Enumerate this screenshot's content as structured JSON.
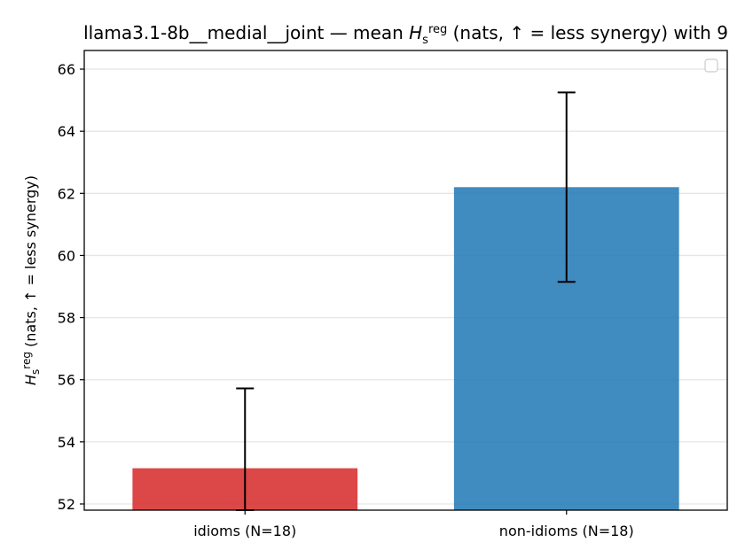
{
  "chart_data": {
    "type": "bar",
    "title": {
      "main": "llama3.1-8b__medial__joint — mean ",
      "symbol": "H",
      "sub": "s",
      "sup": "reg",
      "rest": " (nats, ↑ = less synergy) with 9"
    },
    "ylabel": {
      "symbol": "H",
      "sub": "s",
      "sup": "reg",
      "rest": " (nats, ↑ = less synergy)"
    },
    "xlabel": "",
    "categories": [
      "idioms (N=18)",
      "non-idioms (N=18)"
    ],
    "values": [
      53.15,
      62.2
    ],
    "error_low": [
      51.8,
      59.15
    ],
    "error_high": [
      55.72,
      65.25
    ],
    "colors": [
      "#d62728",
      "#1f77b4"
    ],
    "ylim": [
      51.8,
      66.6
    ],
    "yticks": [
      52,
      54,
      56,
      58,
      60,
      62,
      64,
      66
    ],
    "grid": "horizontal",
    "legend": {
      "position": "top-right",
      "entries": []
    }
  }
}
